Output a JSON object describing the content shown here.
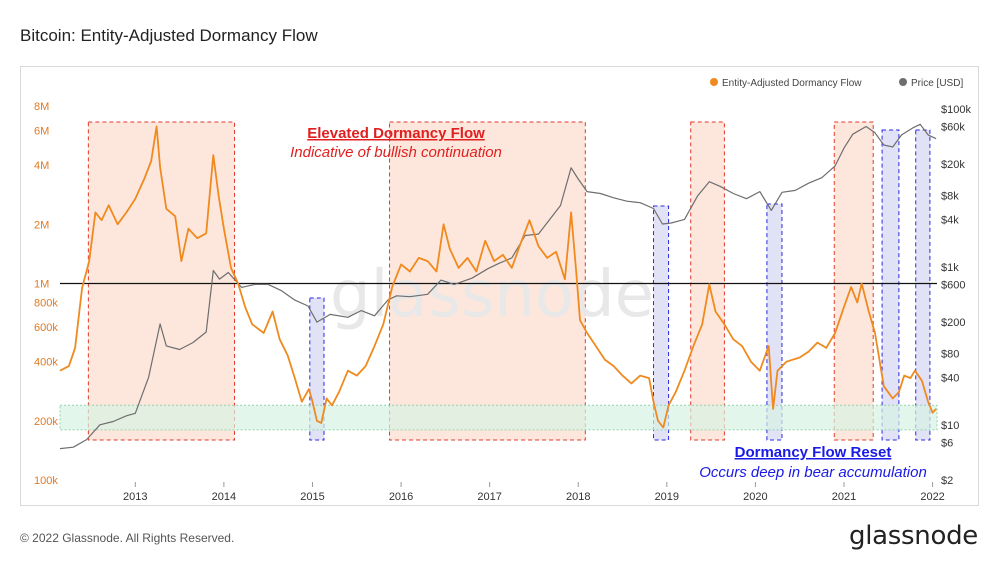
{
  "title": "Bitcoin: Entity-Adjusted Dormancy Flow",
  "footer": {
    "copyright": "© 2022 Glassnode. All Rights Reserved.",
    "brand": "glassnode"
  },
  "watermark": "glassnode",
  "colors": {
    "dormancy": "#f08a1e",
    "price": "#6e6e6e",
    "red_zone_fill": "#fbd7c6",
    "red_zone_stroke": "#e23a2a",
    "blue_zone_fill": "#d8d8f4",
    "blue_zone_stroke": "#2a2ae0",
    "green_band": "#d7f2e3",
    "threshold_line": "#111111"
  },
  "chart_data": {
    "type": "line",
    "title": "Bitcoin: Entity-Adjusted Dormancy Flow",
    "x_range": [
      2012.15,
      2022.05
    ],
    "x_ticks": [
      {
        "value": 2013,
        "label": "2013"
      },
      {
        "value": 2014,
        "label": "2014"
      },
      {
        "value": 2015,
        "label": "2015"
      },
      {
        "value": 2016,
        "label": "2016"
      },
      {
        "value": 2017,
        "label": "2017"
      },
      {
        "value": 2018,
        "label": "2018"
      },
      {
        "value": 2019,
        "label": "2019"
      },
      {
        "value": 2020,
        "label": "2020"
      },
      {
        "value": 2021,
        "label": "2021"
      },
      {
        "value": 2022,
        "label": "2022"
      }
    ],
    "left_axis": {
      "scale": "log",
      "range": [
        100000,
        8000000
      ],
      "ticks": [
        {
          "value": 8000000,
          "label": "8M"
        },
        {
          "value": 6000000,
          "label": "6M"
        },
        {
          "value": 4000000,
          "label": "4M"
        },
        {
          "value": 2000000,
          "label": "2M"
        },
        {
          "value": 1000000,
          "label": "1M"
        },
        {
          "value": 800000,
          "label": "800k"
        },
        {
          "value": 600000,
          "label": "600k"
        },
        {
          "value": 400000,
          "label": "400k"
        },
        {
          "value": 200000,
          "label": "200k"
        },
        {
          "value": 100000,
          "label": "100k"
        }
      ]
    },
    "right_axis": {
      "scale": "log",
      "range": [
        2,
        100000
      ],
      "ticks": [
        {
          "value": 100000,
          "label": "$100k"
        },
        {
          "value": 60000,
          "label": "$60k"
        },
        {
          "value": 20000,
          "label": "$20k"
        },
        {
          "value": 8000,
          "label": "$8k"
        },
        {
          "value": 4000,
          "label": "$4k"
        },
        {
          "value": 1000,
          "label": "$1k"
        },
        {
          "value": 600,
          "label": "$600"
        },
        {
          "value": 200,
          "label": "$200"
        },
        {
          "value": 80,
          "label": "$80"
        },
        {
          "value": 40,
          "label": "$40"
        },
        {
          "value": 10,
          "label": "$10"
        },
        {
          "value": 6,
          "label": "$6"
        },
        {
          "value": 2,
          "label": "$2"
        }
      ]
    },
    "legend": {
      "placement": "top-right",
      "items": [
        {
          "name": "Entity-Adjusted Dormancy Flow",
          "color": "#f08a1e"
        },
        {
          "name": "Price [USD]",
          "color": "#6e6e6e"
        }
      ]
    },
    "threshold": {
      "value": 1000000,
      "axis": "left"
    },
    "reset_band": {
      "low": 180000,
      "high": 240000,
      "axis": "left"
    },
    "series": [
      {
        "name": "Entity-Adjusted Dormancy Flow",
        "axis": "left",
        "color": "#f08a1e",
        "points": [
          [
            2012.15,
            360000
          ],
          [
            2012.25,
            380000
          ],
          [
            2012.32,
            470000
          ],
          [
            2012.4,
            950000
          ],
          [
            2012.48,
            1300000
          ],
          [
            2012.55,
            2300000
          ],
          [
            2012.62,
            2100000
          ],
          [
            2012.7,
            2500000
          ],
          [
            2012.8,
            2000000
          ],
          [
            2012.9,
            2300000
          ],
          [
            2013.0,
            2700000
          ],
          [
            2013.1,
            3400000
          ],
          [
            2013.18,
            4200000
          ],
          [
            2013.24,
            6300000
          ],
          [
            2013.28,
            3900000
          ],
          [
            2013.35,
            2400000
          ],
          [
            2013.45,
            2200000
          ],
          [
            2013.52,
            1300000
          ],
          [
            2013.6,
            1900000
          ],
          [
            2013.7,
            1700000
          ],
          [
            2013.8,
            1800000
          ],
          [
            2013.88,
            4500000
          ],
          [
            2013.94,
            2800000
          ],
          [
            2014.0,
            1900000
          ],
          [
            2014.08,
            1200000
          ],
          [
            2014.16,
            1000000
          ],
          [
            2014.24,
            760000
          ],
          [
            2014.32,
            620000
          ],
          [
            2014.45,
            560000
          ],
          [
            2014.55,
            720000
          ],
          [
            2014.63,
            520000
          ],
          [
            2014.72,
            430000
          ],
          [
            2014.8,
            330000
          ],
          [
            2014.88,
            250000
          ],
          [
            2014.96,
            290000
          ],
          [
            2015.0,
            250000
          ],
          [
            2015.05,
            200000
          ],
          [
            2015.1,
            195000
          ],
          [
            2015.16,
            260000
          ],
          [
            2015.22,
            240000
          ],
          [
            2015.3,
            280000
          ],
          [
            2015.4,
            360000
          ],
          [
            2015.5,
            340000
          ],
          [
            2015.6,
            380000
          ],
          [
            2015.7,
            480000
          ],
          [
            2015.8,
            620000
          ],
          [
            2015.9,
            960000
          ],
          [
            2016.0,
            1250000
          ],
          [
            2016.1,
            1150000
          ],
          [
            2016.2,
            1350000
          ],
          [
            2016.3,
            1300000
          ],
          [
            2016.4,
            1150000
          ],
          [
            2016.48,
            2000000
          ],
          [
            2016.55,
            1500000
          ],
          [
            2016.65,
            1200000
          ],
          [
            2016.75,
            1350000
          ],
          [
            2016.85,
            1150000
          ],
          [
            2016.95,
            1650000
          ],
          [
            2017.05,
            1300000
          ],
          [
            2017.15,
            1400000
          ],
          [
            2017.25,
            1200000
          ],
          [
            2017.35,
            1600000
          ],
          [
            2017.45,
            2100000
          ],
          [
            2017.55,
            1550000
          ],
          [
            2017.65,
            1350000
          ],
          [
            2017.75,
            1450000
          ],
          [
            2017.85,
            1050000
          ],
          [
            2017.92,
            2300000
          ],
          [
            2017.98,
            1100000
          ],
          [
            2018.02,
            650000
          ],
          [
            2018.1,
            560000
          ],
          [
            2018.2,
            480000
          ],
          [
            2018.3,
            410000
          ],
          [
            2018.4,
            380000
          ],
          [
            2018.5,
            340000
          ],
          [
            2018.6,
            310000
          ],
          [
            2018.7,
            340000
          ],
          [
            2018.8,
            330000
          ],
          [
            2018.85,
            250000
          ],
          [
            2018.9,
            200000
          ],
          [
            2018.96,
            185000
          ],
          [
            2019.02,
            240000
          ],
          [
            2019.1,
            280000
          ],
          [
            2019.2,
            360000
          ],
          [
            2019.3,
            480000
          ],
          [
            2019.4,
            620000
          ],
          [
            2019.48,
            990000
          ],
          [
            2019.55,
            720000
          ],
          [
            2019.65,
            620000
          ],
          [
            2019.75,
            520000
          ],
          [
            2019.85,
            480000
          ],
          [
            2019.95,
            400000
          ],
          [
            2020.05,
            360000
          ],
          [
            2020.15,
            480000
          ],
          [
            2020.2,
            230000
          ],
          [
            2020.25,
            360000
          ],
          [
            2020.35,
            400000
          ],
          [
            2020.5,
            420000
          ],
          [
            2020.6,
            450000
          ],
          [
            2020.7,
            500000
          ],
          [
            2020.8,
            470000
          ],
          [
            2020.9,
            560000
          ],
          [
            2021.0,
            760000
          ],
          [
            2021.08,
            960000
          ],
          [
            2021.15,
            800000
          ],
          [
            2021.2,
            1000000
          ],
          [
            2021.28,
            720000
          ],
          [
            2021.35,
            560000
          ],
          [
            2021.45,
            300000
          ],
          [
            2021.55,
            260000
          ],
          [
            2021.62,
            280000
          ],
          [
            2021.68,
            340000
          ],
          [
            2021.75,
            330000
          ],
          [
            2021.8,
            360000
          ],
          [
            2021.88,
            320000
          ],
          [
            2021.95,
            250000
          ],
          [
            2022.0,
            220000
          ],
          [
            2022.04,
            230000
          ]
        ]
      },
      {
        "name": "Price [USD]",
        "axis": "right",
        "color": "#6e6e6e",
        "points": [
          [
            2012.15,
            5
          ],
          [
            2012.3,
            5.2
          ],
          [
            2012.45,
            6.5
          ],
          [
            2012.6,
            10
          ],
          [
            2012.75,
            11
          ],
          [
            2012.9,
            13
          ],
          [
            2013.0,
            14
          ],
          [
            2013.15,
            40
          ],
          [
            2013.28,
            190
          ],
          [
            2013.35,
            100
          ],
          [
            2013.5,
            90
          ],
          [
            2013.65,
            110
          ],
          [
            2013.8,
            150
          ],
          [
            2013.88,
            900
          ],
          [
            2013.95,
            700
          ],
          [
            2014.05,
            850
          ],
          [
            2014.2,
            550
          ],
          [
            2014.35,
            600
          ],
          [
            2014.5,
            600
          ],
          [
            2014.65,
            500
          ],
          [
            2014.8,
            380
          ],
          [
            2014.95,
            320
          ],
          [
            2015.05,
            200
          ],
          [
            2015.2,
            250
          ],
          [
            2015.4,
            230
          ],
          [
            2015.55,
            280
          ],
          [
            2015.7,
            240
          ],
          [
            2015.85,
            380
          ],
          [
            2015.95,
            430
          ],
          [
            2016.1,
            420
          ],
          [
            2016.3,
            450
          ],
          [
            2016.45,
            680
          ],
          [
            2016.6,
            600
          ],
          [
            2016.8,
            720
          ],
          [
            2016.98,
            950
          ],
          [
            2017.1,
            1100
          ],
          [
            2017.25,
            1300
          ],
          [
            2017.4,
            2500
          ],
          [
            2017.55,
            2600
          ],
          [
            2017.7,
            4300
          ],
          [
            2017.8,
            6000
          ],
          [
            2017.92,
            18000
          ],
          [
            2018.0,
            13000
          ],
          [
            2018.1,
            9000
          ],
          [
            2018.25,
            8500
          ],
          [
            2018.4,
            7500
          ],
          [
            2018.55,
            6800
          ],
          [
            2018.7,
            6500
          ],
          [
            2018.85,
            5500
          ],
          [
            2018.95,
            3500
          ],
          [
            2019.05,
            3600
          ],
          [
            2019.2,
            4000
          ],
          [
            2019.35,
            8000
          ],
          [
            2019.48,
            12000
          ],
          [
            2019.6,
            10500
          ],
          [
            2019.75,
            8500
          ],
          [
            2019.9,
            7300
          ],
          [
            2020.05,
            9000
          ],
          [
            2020.18,
            5200
          ],
          [
            2020.3,
            8800
          ],
          [
            2020.45,
            9300
          ],
          [
            2020.6,
            11500
          ],
          [
            2020.75,
            13500
          ],
          [
            2020.9,
            19000
          ],
          [
            2021.0,
            32000
          ],
          [
            2021.1,
            48000
          ],
          [
            2021.25,
            60000
          ],
          [
            2021.35,
            50000
          ],
          [
            2021.45,
            35000
          ],
          [
            2021.55,
            33000
          ],
          [
            2021.65,
            47000
          ],
          [
            2021.78,
            58000
          ],
          [
            2021.86,
            64000
          ],
          [
            2021.95,
            47000
          ],
          [
            2022.04,
            42000
          ]
        ]
      }
    ],
    "red_zones": [
      [
        2012.47,
        2014.12
      ],
      [
        2015.87,
        2018.08
      ],
      [
        2019.27,
        2019.65
      ],
      [
        2020.89,
        2021.33
      ]
    ],
    "blue_zones": [
      [
        2014.97,
        2015.13
      ],
      [
        2018.85,
        2019.02
      ],
      [
        2020.13,
        2020.3
      ],
      [
        2021.43,
        2021.62
      ],
      [
        2021.81,
        2021.97
      ]
    ],
    "annotations": [
      {
        "title": "Elevated Dormancy Flow",
        "subtitle": "Indicative of bullish continuation",
        "color": "#e02020"
      },
      {
        "title": "Dormancy Flow Reset",
        "subtitle": "Occurs deep in bear accumulation",
        "color": "#1a1ae6"
      }
    ]
  }
}
